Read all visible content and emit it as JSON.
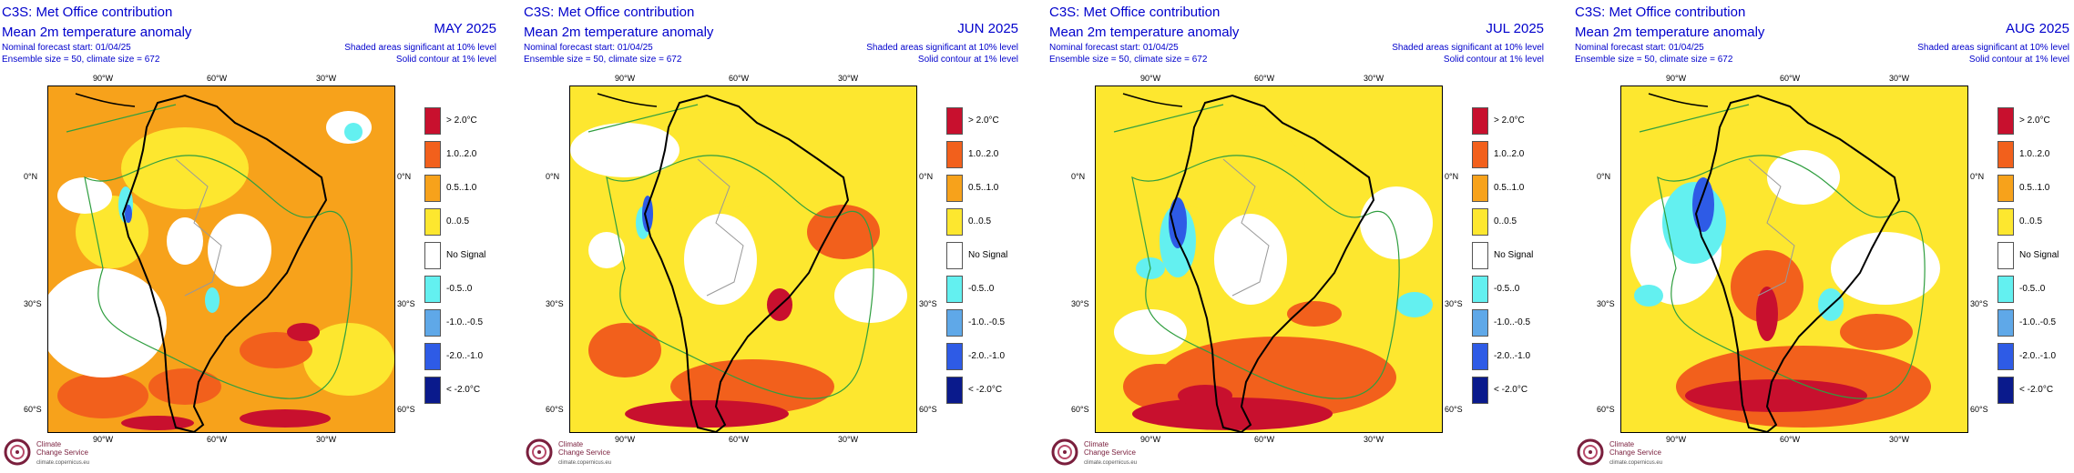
{
  "header": {
    "title": "C3S: Met Office contribution",
    "subtitle": "Mean 2m temperature anomaly",
    "forecast_start": "Nominal forecast start: 01/04/25",
    "ensemble": "Ensemble size = 50, climate size = 672",
    "shaded_note": "Shaded areas significant at 10% level",
    "contour_note": "Solid contour at 1% level"
  },
  "panels": [
    {
      "month": "MAY 2025"
    },
    {
      "month": "JUN 2025"
    },
    {
      "month": "JUL 2025"
    },
    {
      "month": "AUG 2025"
    }
  ],
  "axes": {
    "lon_labels": [
      "90°W",
      "60°W",
      "30°W"
    ],
    "lat_labels": [
      "0°N",
      "30°S",
      "60°S"
    ]
  },
  "legend": [
    {
      "label": "> 2.0°C",
      "color": "#c8102e"
    },
    {
      "label": "1.0..2.0",
      "color": "#f2601c"
    },
    {
      "label": "0.5..1.0",
      "color": "#f7a21b"
    },
    {
      "label": "0..0.5",
      "color": "#fde72f"
    },
    {
      "label": "No Signal",
      "color": "#ffffff"
    },
    {
      "label": "-0.5..0",
      "color": "#63f0f0"
    },
    {
      "label": "-1.0..-0.5",
      "color": "#5fa8e8"
    },
    {
      "label": "-2.0..-1.0",
      "color": "#2e5be6"
    },
    {
      "label": "< -2.0°C",
      "color": "#0a1a8c"
    }
  ],
  "logo": {
    "line1": "Climate",
    "line2": "Change Service",
    "url": "climate.copernicus.eu"
  }
}
